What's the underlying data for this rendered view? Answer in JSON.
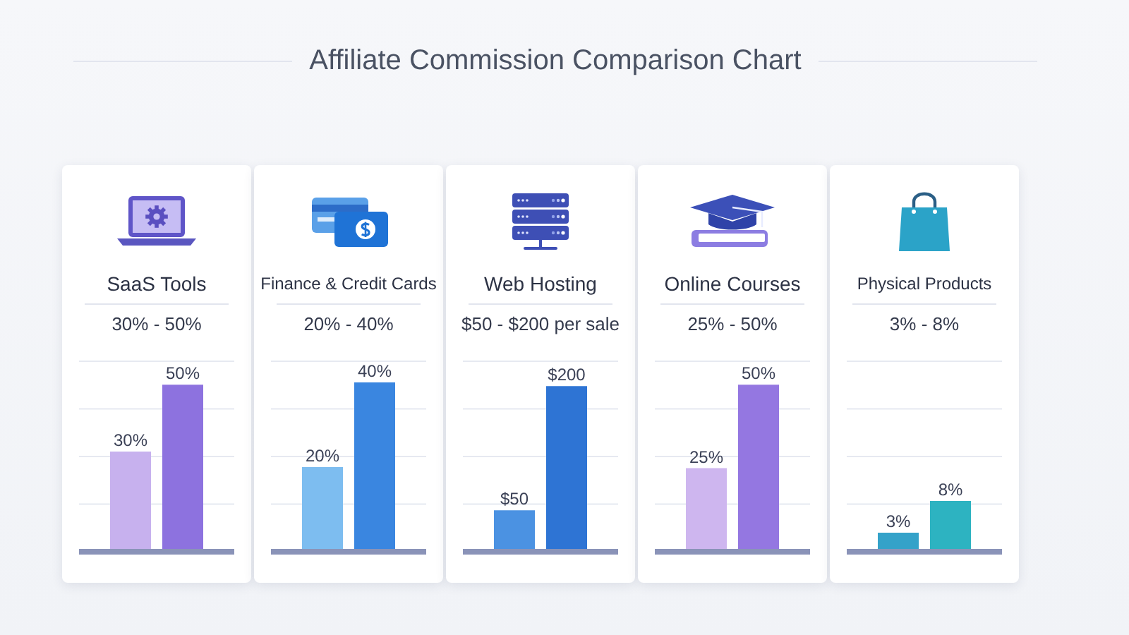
{
  "chart_data": [
    {
      "type": "other",
      "title": "Affiliate Commission Comparison Chart"
    },
    {
      "type": "bar",
      "title": "SaaS Tools",
      "subtitle": "30% - 50%",
      "categories": [
        null,
        null
      ],
      "values": [
        30,
        50
      ],
      "colors": [
        "#c7b1ee",
        "#8d72df"
      ],
      "value_labels": [
        "30%",
        "50%"
      ],
      "ylim": [
        0,
        57
      ],
      "grid": "y",
      "tick_labels": false
    },
    {
      "type": "bar",
      "title": "Finance & Credit Cards",
      "subtitle": "20% - 40%",
      "categories": [
        null,
        null
      ],
      "values": [
        20,
        40
      ],
      "colors": [
        "#7dbdf0",
        "#3a86e0"
      ],
      "value_labels": [
        "20%",
        "40%"
      ],
      "ylim": [
        0,
        45
      ],
      "grid": "y",
      "tick_labels": false
    },
    {
      "type": "bar",
      "title": "Web Hosting",
      "subtitle": "$50 - $200 per sale",
      "categories": [
        null,
        null
      ],
      "values": [
        50,
        200
      ],
      "colors": [
        "#4b92e2",
        "#2e74d4"
      ],
      "value_labels": [
        "$50",
        "$200"
      ],
      "ylim": [
        0,
        230
      ],
      "grid": "y",
      "tick_labels": false
    },
    {
      "type": "bar",
      "title": "Online Courses",
      "subtitle": "25% - 50%",
      "categories": [
        null,
        null
      ],
      "values": [
        25,
        50
      ],
      "colors": [
        "#ceb6ef",
        "#9477e1"
      ],
      "value_labels": [
        "25%",
        "50%"
      ],
      "ylim": [
        0,
        57
      ],
      "grid": "y",
      "tick_labels": false
    },
    {
      "type": "bar",
      "title": "Physical Products",
      "subtitle": "3% - 8%",
      "categories": [
        null,
        null
      ],
      "values": [
        3,
        8
      ],
      "colors": [
        "#34a2c9",
        "#2db3c1"
      ],
      "value_labels": [
        "3%",
        "8%"
      ],
      "ylim": [
        0,
        30
      ],
      "grid": "y",
      "tick_labels": false
    }
  ]
}
